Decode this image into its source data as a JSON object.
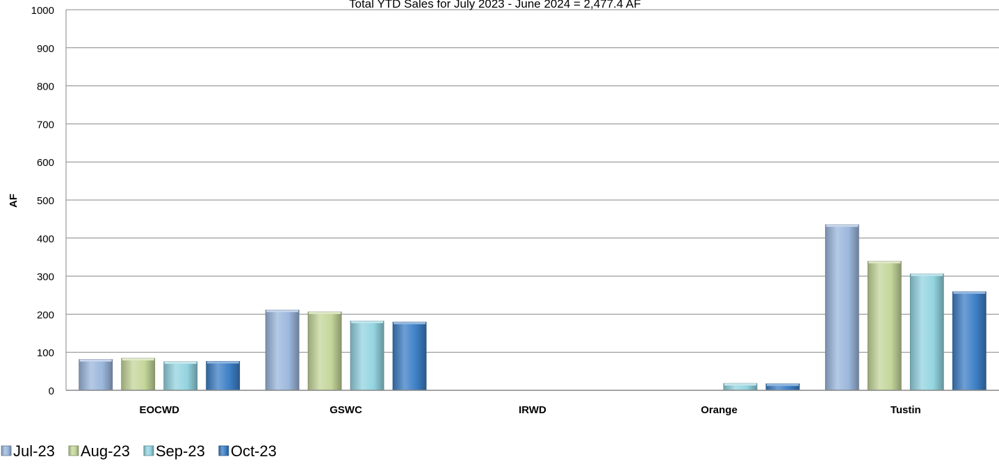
{
  "chart_data": {
    "type": "bar",
    "title": "Total YTD Sales for July 2023 - June 2024 = 2,477.4 AF",
    "xlabel": "",
    "ylabel": "AF",
    "ylim": [
      0,
      1000
    ],
    "yticks": [
      0,
      100,
      200,
      300,
      400,
      500,
      600,
      700,
      800,
      900,
      1000
    ],
    "grid": true,
    "legend_position": "bottom-left",
    "categories": [
      "EOCWD",
      "GSWC",
      "IRWD",
      "Orange",
      "Tustin"
    ],
    "series": [
      {
        "name": "Jul-23",
        "color": "#9bb7dc",
        "values": [
          81,
          211,
          0,
          0,
          435
        ]
      },
      {
        "name": "Aug-23",
        "color": "#c4d69a",
        "values": [
          84,
          206,
          0,
          0,
          339
        ]
      },
      {
        "name": "Sep-23",
        "color": "#93d4e0",
        "values": [
          75,
          182,
          0,
          18,
          306
        ]
      },
      {
        "name": "Oct-23",
        "color": "#3d7fc6",
        "values": [
          76,
          179,
          0,
          17,
          259
        ]
      }
    ]
  }
}
